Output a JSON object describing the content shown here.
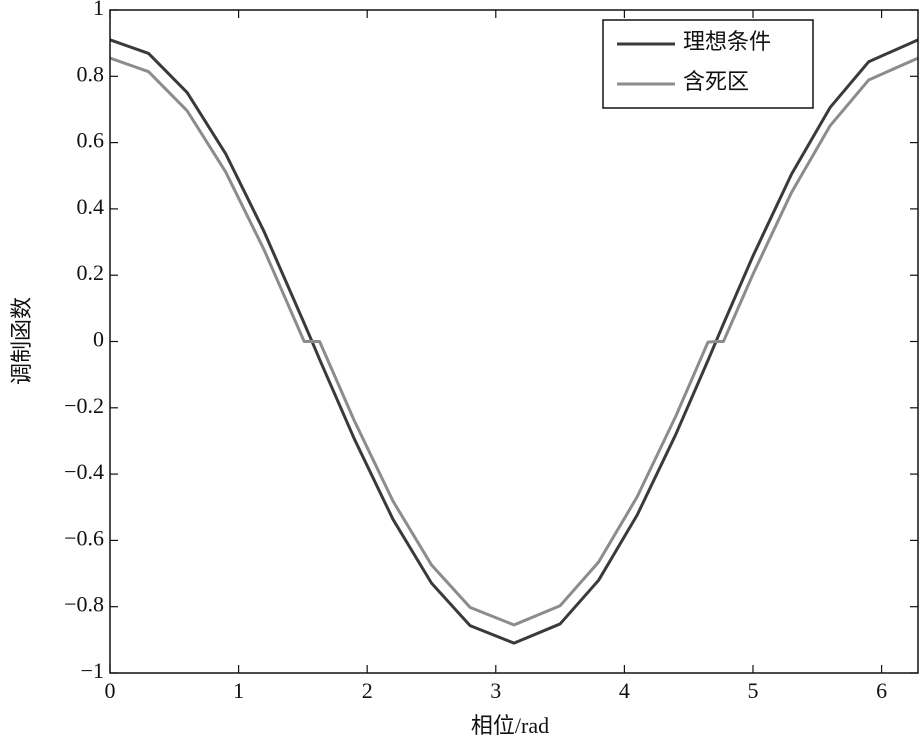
{
  "chart_data": {
    "type": "line",
    "xlabel": "相位/rad",
    "ylabel": "调制函数",
    "x": [
      0,
      0.3,
      0.6,
      0.9,
      1.2,
      1.51,
      1.57,
      1.63,
      1.9,
      2.2,
      2.5,
      2.8,
      3.1416,
      3.5,
      3.8,
      4.1,
      4.4,
      4.65,
      4.71,
      4.77,
      5.0,
      5.3,
      5.6,
      5.9,
      6.2832
    ],
    "series": [
      {
        "name": "理想条件",
        "color": "#3a3a3a",
        "values": [
          0.91,
          0.869,
          0.751,
          0.566,
          0.33,
          0.055,
          0.001,
          -0.054,
          -0.294,
          -0.536,
          -0.729,
          -0.857,
          -0.91,
          -0.852,
          -0.72,
          -0.523,
          -0.28,
          -0.057,
          -0.002,
          0.053,
          0.258,
          0.505,
          0.706,
          0.844,
          0.91
        ]
      },
      {
        "name": "含死区",
        "color": "#8c8c8c",
        "values": [
          0.855,
          0.814,
          0.696,
          0.511,
          0.275,
          0,
          0,
          0,
          -0.239,
          -0.481,
          -0.674,
          -0.802,
          -0.855,
          -0.797,
          -0.665,
          -0.468,
          -0.225,
          -0.002,
          0,
          0,
          0.203,
          0.45,
          0.651,
          0.789,
          0.855
        ]
      }
    ],
    "xlim": [
      0,
      6.2832
    ],
    "xticks": [
      0,
      1,
      2,
      3,
      4,
      5,
      6
    ],
    "ylim": [
      -1,
      1
    ],
    "yticks": [
      {
        "value": -1,
        "label": "−1"
      },
      {
        "value": -0.8,
        "label": "−0.8"
      },
      {
        "value": -0.6,
        "label": "−0.6"
      },
      {
        "value": -0.4,
        "label": "−0.4"
      },
      {
        "value": -0.2,
        "label": "−0.2"
      },
      0,
      0.2,
      0.4,
      0.6,
      0.8,
      1
    ],
    "grid": false,
    "legend": "upper right"
  }
}
